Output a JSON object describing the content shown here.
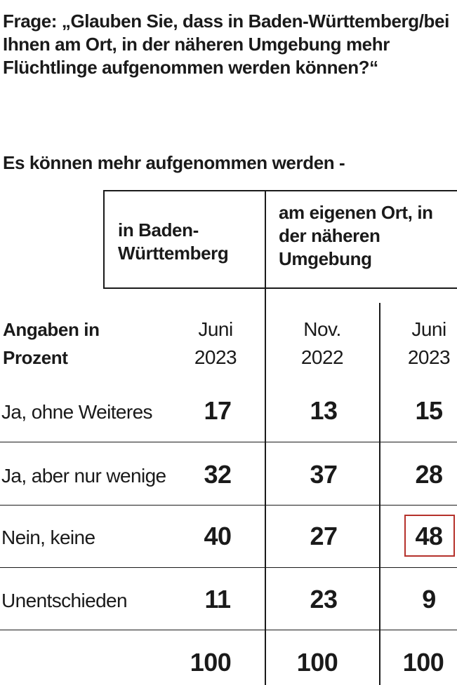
{
  "question": "Frage: „Glauben Sie, dass in Baden-Württemberg/bei Ihnen am Ort, in der näheren Umgebung mehr Flüchtlinge aufgenommen werden können?“",
  "subtitle": "Es können mehr aufgenommen werden -",
  "groups": [
    {
      "label": "in Baden-Württemberg"
    },
    {
      "label": "am eigenen Ort, in der näheren Umgebung"
    }
  ],
  "table": {
    "row_header": "Angaben in Prozent",
    "periods": [
      {
        "month": "Juni",
        "year": "2023"
      },
      {
        "month": "Nov.",
        "year": "2022"
      },
      {
        "month": "Juni",
        "year": "2023"
      }
    ],
    "rows": [
      {
        "label": "Ja, ohne Weiteres",
        "values": [
          "17",
          "13",
          "15"
        ]
      },
      {
        "label": "Ja, aber nur wenige",
        "values": [
          "32",
          "37",
          "28"
        ]
      },
      {
        "label": "Nein, keine",
        "values": [
          "40",
          "27",
          "48"
        ]
      },
      {
        "label": "Unentschieden",
        "values": [
          "11",
          "23",
          "9"
        ]
      }
    ],
    "totals": [
      "100",
      "100",
      "100"
    ]
  },
  "colors": {
    "text": "#1a1a1a",
    "highlight_border": "#b5312b"
  }
}
